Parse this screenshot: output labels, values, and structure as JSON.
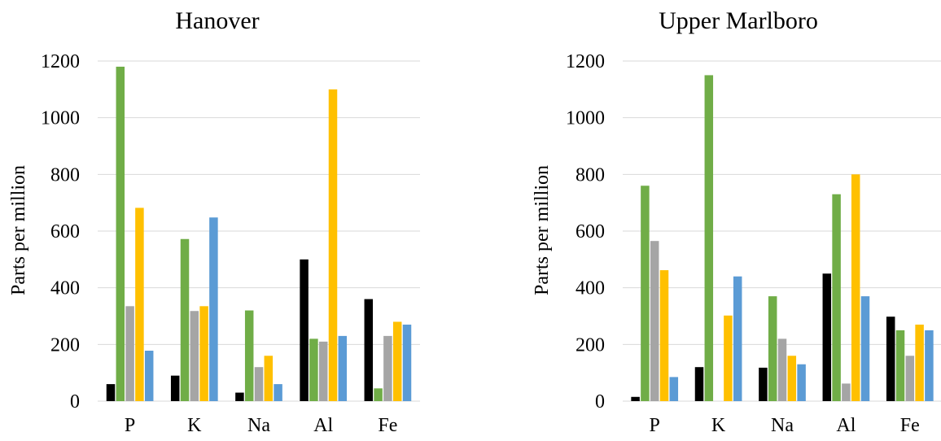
{
  "chart_data": [
    {
      "type": "bar",
      "title": "Hanover",
      "xlabel": "",
      "ylabel": "Parts per million",
      "ylim": [
        0,
        1200
      ],
      "yticks": [
        0,
        200,
        400,
        600,
        800,
        1000,
        1200
      ],
      "grid": true,
      "legend": "none",
      "categories": [
        "P",
        "K",
        "Na",
        "Al",
        "Fe"
      ],
      "series": [
        {
          "color": "#000000",
          "values": [
            60,
            90,
            30,
            500,
            360
          ]
        },
        {
          "color": "#70ad47",
          "values": [
            1180,
            572,
            320,
            220,
            45
          ]
        },
        {
          "color": "#a5a5a5",
          "values": [
            335,
            318,
            120,
            210,
            230
          ]
        },
        {
          "color": "#ffc000",
          "values": [
            682,
            335,
            160,
            1100,
            280
          ]
        },
        {
          "color": "#5b9bd5",
          "values": [
            178,
            648,
            60,
            230,
            270
          ]
        }
      ]
    },
    {
      "type": "bar",
      "title": "Upper Marlboro",
      "xlabel": "",
      "ylabel": "Parts per million",
      "ylim": [
        0,
        1200
      ],
      "yticks": [
        0,
        200,
        400,
        600,
        800,
        1000,
        1200
      ],
      "grid": true,
      "legend": "none",
      "categories": [
        "P",
        "K",
        "Na",
        "Al",
        "Fe"
      ],
      "series": [
        {
          "color": "#000000",
          "values": [
            15,
            120,
            118,
            450,
            298
          ]
        },
        {
          "color": "#70ad47",
          "values": [
            760,
            1150,
            370,
            730,
            250
          ]
        },
        {
          "color": "#a5a5a5",
          "values": [
            565,
            0,
            220,
            62,
            160
          ]
        },
        {
          "color": "#ffc000",
          "values": [
            462,
            302,
            160,
            800,
            270
          ]
        },
        {
          "color": "#5b9bd5",
          "values": [
            85,
            440,
            130,
            370,
            250
          ]
        }
      ]
    }
  ]
}
